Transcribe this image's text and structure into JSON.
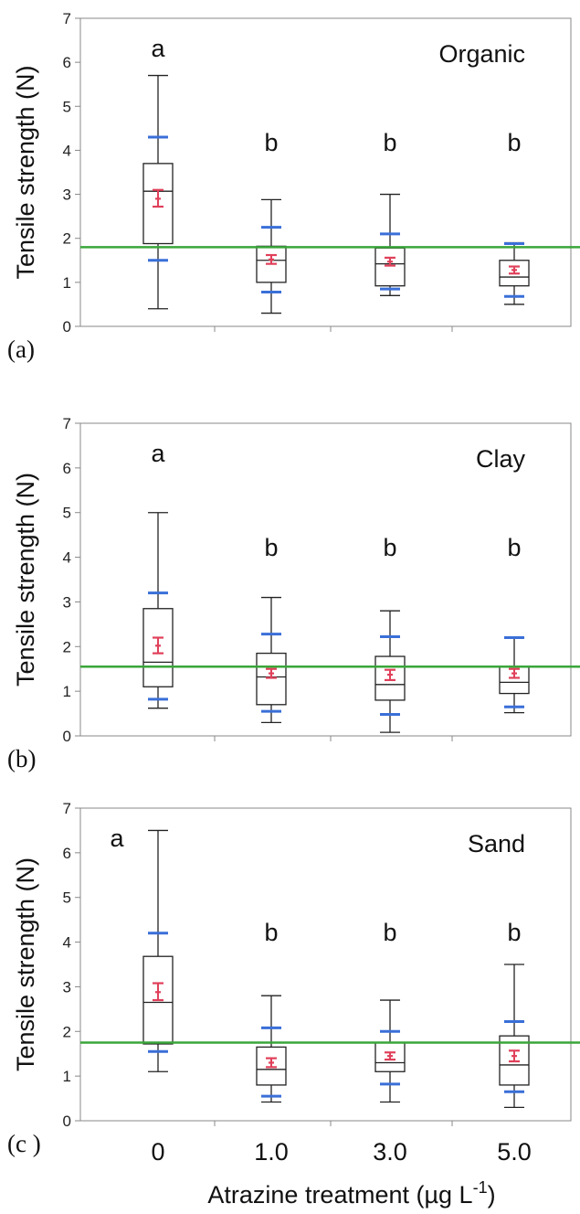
{
  "chart_data": [
    {
      "type": "box",
      "panel_label": "(a)",
      "title": "Organic",
      "ylabel": "Tensile strength (N)",
      "ylim": [
        0,
        7
      ],
      "yticks": [
        0,
        1,
        2,
        3,
        4,
        5,
        6,
        7
      ],
      "categories": [
        "0",
        "1.0",
        "3.0",
        "5.0"
      ],
      "reference_line": 1.8,
      "groups": [
        {
          "category": "0",
          "letter": "a",
          "whisker_low": 0.4,
          "q1": 1.88,
          "median": 3.07,
          "q3": 3.7,
          "whisker_high": 5.7,
          "sd_low": 1.5,
          "sd_high": 4.3,
          "mean": 2.9,
          "ci_low": 2.72,
          "ci_high": 3.1
        },
        {
          "category": "1.0",
          "letter": "b",
          "whisker_low": 0.3,
          "q1": 1.0,
          "median": 1.5,
          "q3": 1.82,
          "whisker_high": 2.88,
          "sd_low": 0.78,
          "sd_high": 2.25,
          "mean": 1.52,
          "ci_low": 1.42,
          "ci_high": 1.62
        },
        {
          "category": "3.0",
          "letter": "b",
          "whisker_low": 0.7,
          "q1": 0.92,
          "median": 1.42,
          "q3": 1.78,
          "whisker_high": 3.0,
          "sd_low": 0.85,
          "sd_high": 2.1,
          "mean": 1.47,
          "ci_low": 1.38,
          "ci_high": 1.56
        },
        {
          "category": "5.0",
          "letter": "b",
          "whisker_low": 0.5,
          "q1": 0.92,
          "median": 1.12,
          "q3": 1.5,
          "whisker_high": 1.9,
          "sd_low": 0.68,
          "sd_high": 1.88,
          "mean": 1.28,
          "ci_low": 1.2,
          "ci_high": 1.36
        }
      ]
    },
    {
      "type": "box",
      "panel_label": "(b)",
      "title": "Clay",
      "ylabel": "Tensile strength (N)",
      "ylim": [
        0,
        7
      ],
      "yticks": [
        0,
        1,
        2,
        3,
        4,
        5,
        6,
        7
      ],
      "categories": [
        "0",
        "1.0",
        "3.0",
        "5.0"
      ],
      "reference_line": 1.55,
      "groups": [
        {
          "category": "0",
          "letter": "a",
          "whisker_low": 0.62,
          "q1": 1.1,
          "median": 1.65,
          "q3": 2.85,
          "whisker_high": 5.0,
          "sd_low": 0.82,
          "sd_high": 3.2,
          "mean": 2.02,
          "ci_low": 1.85,
          "ci_high": 2.2
        },
        {
          "category": "1.0",
          "letter": "b",
          "whisker_low": 0.3,
          "q1": 0.7,
          "median": 1.32,
          "q3": 1.85,
          "whisker_high": 3.1,
          "sd_low": 0.55,
          "sd_high": 2.28,
          "mean": 1.4,
          "ci_low": 1.3,
          "ci_high": 1.5
        },
        {
          "category": "3.0",
          "letter": "b",
          "whisker_low": 0.08,
          "q1": 0.8,
          "median": 1.15,
          "q3": 1.78,
          "whisker_high": 2.8,
          "sd_low": 0.48,
          "sd_high": 2.22,
          "mean": 1.37,
          "ci_low": 1.25,
          "ci_high": 1.48
        },
        {
          "category": "5.0",
          "letter": "b",
          "whisker_low": 0.52,
          "q1": 0.95,
          "median": 1.2,
          "q3": 1.55,
          "whisker_high": 2.2,
          "sd_low": 0.65,
          "sd_high": 2.2,
          "mean": 1.4,
          "ci_low": 1.3,
          "ci_high": 1.5
        }
      ]
    },
    {
      "type": "box",
      "panel_label": "(c )",
      "title": "Sand",
      "ylabel": "Tensile strength (N)",
      "xlabel": "Atrazine treatment (µg L",
      "xlabel_sup": "-1",
      "xlabel_end": ")",
      "ylim": [
        0,
        7
      ],
      "yticks": [
        0,
        1,
        2,
        3,
        4,
        5,
        6,
        7
      ],
      "categories": [
        "0",
        "1.0",
        "3.0",
        "5.0"
      ],
      "reference_line": 1.75,
      "groups": [
        {
          "category": "0",
          "letter": "a",
          "whisker_low": 1.1,
          "q1": 1.72,
          "median": 2.65,
          "q3": 3.68,
          "whisker_high": 6.5,
          "sd_low": 1.55,
          "sd_high": 4.2,
          "mean": 2.88,
          "ci_low": 2.7,
          "ci_high": 3.08
        },
        {
          "category": "1.0",
          "letter": "b",
          "whisker_low": 0.42,
          "q1": 0.8,
          "median": 1.15,
          "q3": 1.65,
          "whisker_high": 2.8,
          "sd_low": 0.55,
          "sd_high": 2.08,
          "mean": 1.3,
          "ci_low": 1.2,
          "ci_high": 1.4
        },
        {
          "category": "3.0",
          "letter": "b",
          "whisker_low": 0.42,
          "q1": 1.1,
          "median": 1.3,
          "q3": 1.75,
          "whisker_high": 2.7,
          "sd_low": 0.82,
          "sd_high": 2.0,
          "mean": 1.45,
          "ci_low": 1.37,
          "ci_high": 1.53
        },
        {
          "category": "5.0",
          "letter": "b",
          "whisker_low": 0.3,
          "q1": 0.8,
          "median": 1.25,
          "q3": 1.9,
          "whisker_high": 3.5,
          "sd_low": 0.65,
          "sd_high": 2.22,
          "mean": 1.45,
          "ci_low": 1.33,
          "ci_high": 1.57
        }
      ]
    }
  ],
  "colors": {
    "box": "#222222",
    "sd_marker": "#3a6fd8",
    "mean_marker": "#e0405a",
    "reference_line": "#3aa63a",
    "axis": "#888888"
  }
}
